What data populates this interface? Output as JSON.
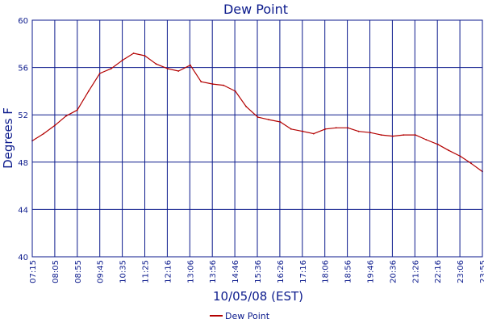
{
  "chart_data": {
    "type": "line",
    "title": "Dew Point",
    "xlabel": "10/05/08 (EST)",
    "ylabel": "Degrees F",
    "ylim": [
      40,
      60
    ],
    "yticks": [
      40,
      44,
      48,
      52,
      56,
      60
    ],
    "xticks": [
      "07:15",
      "08:05",
      "08:55",
      "09:45",
      "10:35",
      "11:25",
      "12:16",
      "13:06",
      "13:56",
      "14:46",
      "15:36",
      "16:26",
      "17:16",
      "18:06",
      "18:56",
      "19:46",
      "20:36",
      "21:26",
      "22:16",
      "23:06",
      "23:55"
    ],
    "grid": true,
    "legend": "bottom-center",
    "series": [
      {
        "name": "Dew Point",
        "color": "#b30000",
        "x": [
          "07:15",
          "07:40",
          "08:05",
          "08:30",
          "08:55",
          "09:20",
          "09:45",
          "10:10",
          "10:35",
          "11:00",
          "11:25",
          "11:50",
          "12:16",
          "12:40",
          "13:06",
          "13:30",
          "13:56",
          "14:20",
          "14:46",
          "15:10",
          "15:36",
          "16:00",
          "16:26",
          "16:50",
          "17:16",
          "17:40",
          "18:06",
          "18:30",
          "18:56",
          "19:20",
          "19:46",
          "20:10",
          "20:36",
          "21:00",
          "21:26",
          "21:50",
          "22:16",
          "22:40",
          "23:06",
          "23:30",
          "23:55"
        ],
        "values": [
          49.8,
          50.4,
          51.1,
          51.9,
          52.4,
          54.0,
          55.5,
          55.9,
          56.6,
          57.2,
          57.0,
          56.3,
          55.9,
          55.7,
          56.2,
          54.8,
          54.6,
          54.5,
          54.0,
          52.7,
          51.8,
          51.6,
          51.4,
          50.8,
          50.6,
          50.4,
          50.8,
          50.9,
          50.9,
          50.6,
          50.5,
          50.3,
          50.2,
          50.3,
          50.3,
          49.9,
          49.5,
          49.0,
          48.5,
          47.9,
          47.2
        ]
      }
    ]
  }
}
